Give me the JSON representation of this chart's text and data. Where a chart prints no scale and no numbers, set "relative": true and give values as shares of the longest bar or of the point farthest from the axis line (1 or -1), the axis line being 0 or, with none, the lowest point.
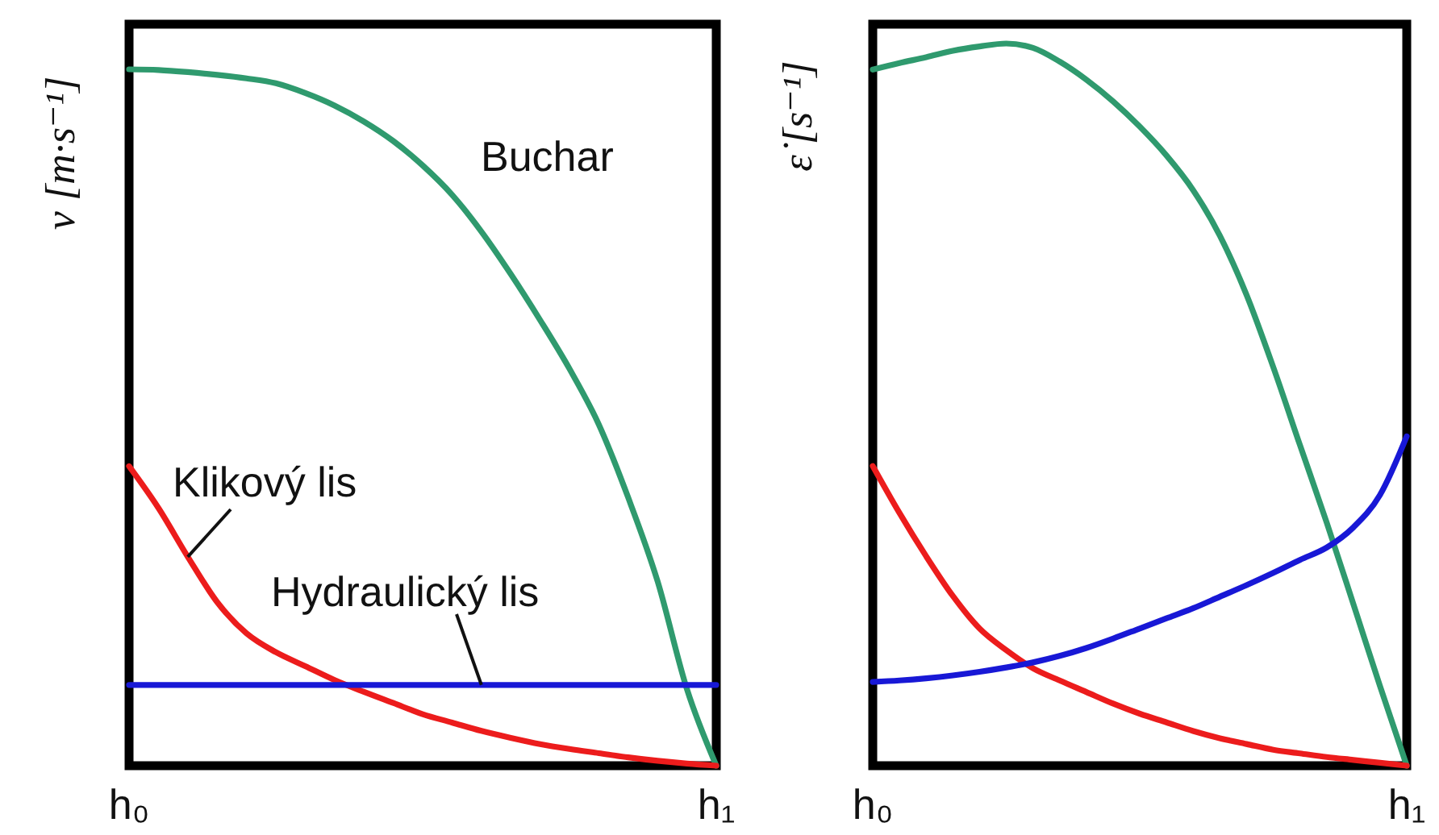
{
  "chart_data": [
    {
      "type": "line",
      "relative": true,
      "ylabel": "v [m·s⁻¹]",
      "categories": [
        "h₀",
        null,
        null,
        null,
        null,
        null,
        null,
        null,
        null,
        null,
        null,
        null,
        null,
        null,
        null,
        null,
        null,
        null,
        null,
        null,
        "h₁"
      ],
      "series": [
        {
          "name": "Buchar",
          "color": "#2f9a6e",
          "values": [
            1,
            0.999,
            0.996,
            0.992,
            0.987,
            0.98,
            0.966,
            0.948,
            0.925,
            0.897,
            0.862,
            0.82,
            0.767,
            0.706,
            0.64,
            0.57,
            0.49,
            0.385,
            0.265,
            0.11,
            0
          ]
        },
        {
          "name": "Klikový lis",
          "color": "#ec1c1c",
          "values": [
            0.43,
            0.37,
            0.3,
            0.235,
            0.19,
            0.163,
            0.143,
            0.123,
            0.106,
            0.09,
            0.074,
            0.062,
            0.05,
            0.04,
            0.031,
            0.024,
            0.018,
            0.012,
            0.007,
            0.003,
            0
          ]
        },
        {
          "name": "Hydraulický lis",
          "color": "#1818d6",
          "values": [
            0.116,
            0.116,
            0.116,
            0.116,
            0.116,
            0.116,
            0.116,
            0.116,
            0.116,
            0.116,
            0.116,
            0.116,
            0.116,
            0.116,
            0.116,
            0.116,
            0.116,
            0.116,
            0.116,
            0.116,
            0.116
          ]
        }
      ]
    },
    {
      "type": "line",
      "relative": true,
      "ylabel": "ε̇ [s⁻¹]",
      "categories": [
        "h₀",
        null,
        null,
        null,
        null,
        null,
        null,
        null,
        null,
        null,
        null,
        null,
        null,
        null,
        null,
        null,
        null,
        null,
        null,
        null,
        "h₁"
      ],
      "series": [
        {
          "color": "#2f9a6e",
          "values": [
            0.964,
            0.973,
            0.981,
            0.99,
            0.996,
            1,
            0.994,
            0.975,
            0.95,
            0.92,
            0.885,
            0.845,
            0.797,
            0.734,
            0.652,
            0.552,
            0.444,
            0.337,
            0.224,
            0.11,
            0
          ]
        },
        {
          "color": "#ec1c1c",
          "values": [
            0.415,
            0.35,
            0.29,
            0.235,
            0.19,
            0.16,
            0.135,
            0.118,
            0.102,
            0.086,
            0.072,
            0.06,
            0.048,
            0.038,
            0.03,
            0.022,
            0.017,
            0.012,
            0.008,
            0.004,
            0
          ]
        },
        {
          "color": "#1818d6",
          "values": [
            0.116,
            0.118,
            0.121,
            0.125,
            0.13,
            0.136,
            0.143,
            0.152,
            0.163,
            0.176,
            0.19,
            0.204,
            0.218,
            0.234,
            0.25,
            0.267,
            0.285,
            0.302,
            0.33,
            0.375,
            0.456
          ]
        }
      ]
    }
  ]
}
